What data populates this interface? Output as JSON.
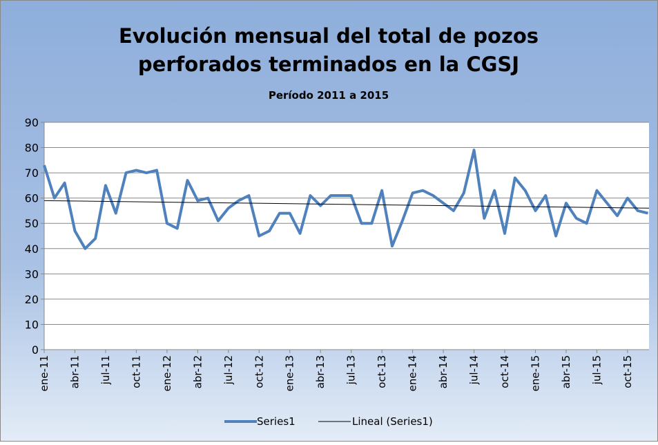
{
  "chart_data": {
    "type": "line",
    "title": [
      "Evolución mensual del total de pozos",
      "perforados terminados en la CGSJ"
    ],
    "subtitle": "Período 2011 a 2015",
    "categories": [
      "ene-11",
      null,
      null,
      "abr-11",
      null,
      null,
      "jul-11",
      null,
      null,
      "oct-11",
      null,
      null,
      "ene-12",
      null,
      null,
      "abr-12",
      null,
      null,
      "jul-12",
      null,
      null,
      "oct-12",
      null,
      null,
      "ene-13",
      null,
      null,
      "abr-13",
      null,
      null,
      "jul-13",
      null,
      null,
      "oct-13",
      null,
      null,
      "ene-14",
      null,
      null,
      "abr-14",
      null,
      null,
      "jul-14",
      null,
      null,
      "oct-14",
      null,
      null,
      "ene-15",
      null,
      null,
      "abr-15",
      null,
      null,
      "jul-15",
      null,
      null,
      "oct-15",
      null,
      null
    ],
    "series": [
      {
        "name": "Series1",
        "color": "#4f81bd",
        "values": [
          73,
          60,
          66,
          47,
          40,
          44,
          65,
          54,
          70,
          71,
          70,
          71,
          50,
          48,
          67,
          59,
          60,
          51,
          56,
          59,
          61,
          45,
          47,
          54,
          54,
          46,
          61,
          57,
          61,
          61,
          61,
          50,
          50,
          63,
          41,
          51,
          62,
          63,
          61,
          58,
          55,
          62,
          79,
          52,
          63,
          46,
          68,
          63,
          55,
          61,
          45,
          58,
          52,
          50,
          63,
          58,
          53,
          60,
          55,
          54
        ]
      }
    ],
    "trendline": {
      "name": "Lineal (Series1)",
      "color": "#000000",
      "start": 59,
      "end": 56
    },
    "ylim": [
      0,
      90
    ],
    "yticks": [
      0,
      10,
      20,
      30,
      40,
      50,
      60,
      70,
      80,
      90
    ],
    "grid": true
  }
}
